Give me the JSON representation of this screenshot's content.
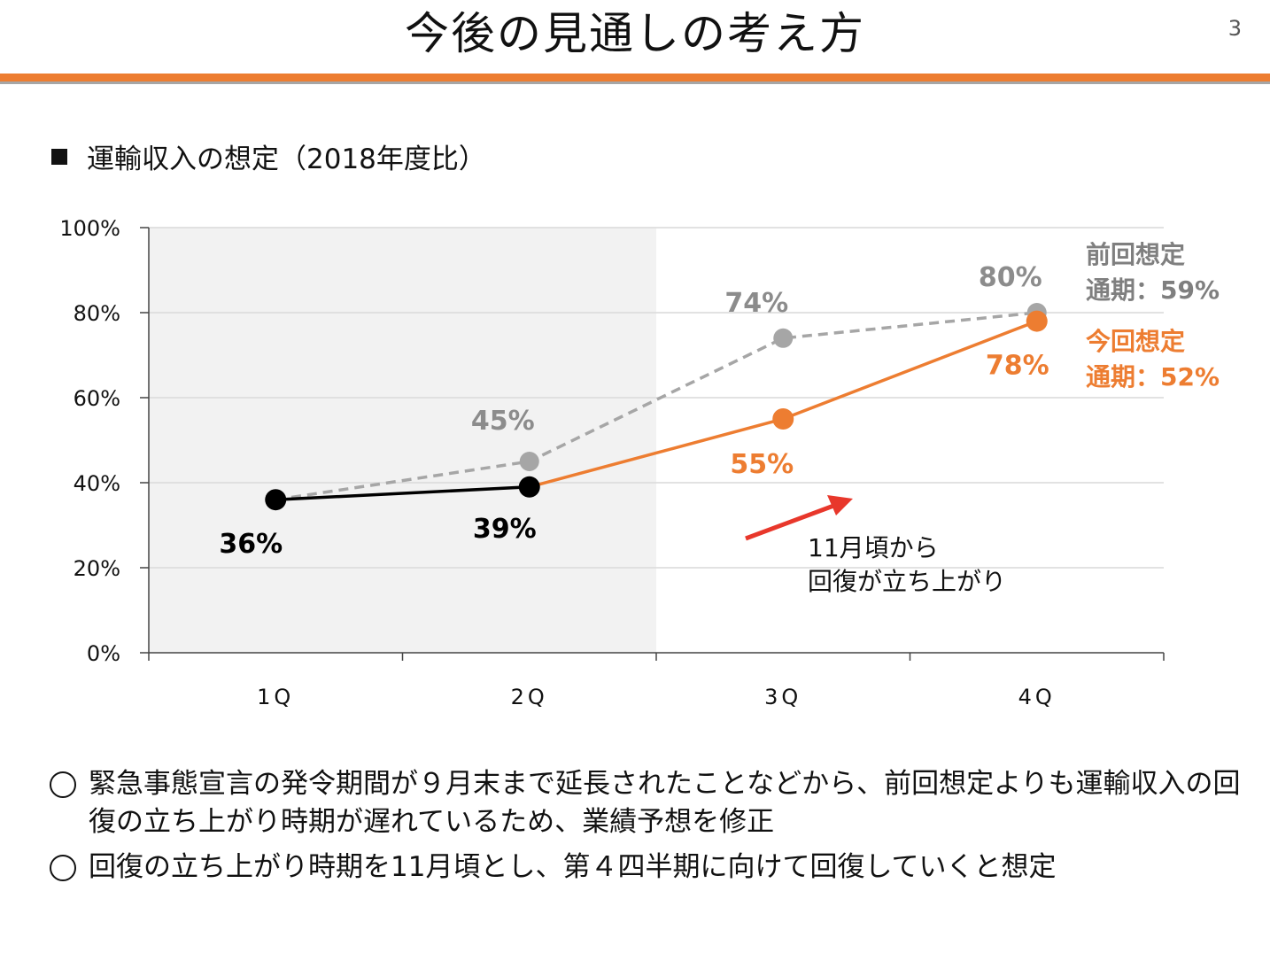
{
  "header": {
    "title": "今後の見通しの考え方",
    "page_number": "3"
  },
  "section": {
    "title": "運輸収入の想定（2018年度比）"
  },
  "chart_data": {
    "type": "line",
    "title": "運輸収入の想定（2018年度比）",
    "categories": [
      "1Q",
      "2Q",
      "3Q",
      "4Q"
    ],
    "ylim": [
      0,
      100
    ],
    "yticks": [
      "0%",
      "20%",
      "40%",
      "60%",
      "80%",
      "100%"
    ],
    "grid": true,
    "shaded_region": "1Q–2Q",
    "series": [
      {
        "name": "前回想定",
        "values": [
          36,
          45,
          74,
          80
        ],
        "labels": [
          "",
          "45%",
          "74%",
          "80%"
        ],
        "color": "#a6a6a6",
        "dash": true
      },
      {
        "name": "今回想定",
        "values": [
          36,
          39,
          55,
          78
        ],
        "labels": [
          "36%",
          "39%",
          "55%",
          "78%"
        ],
        "color": "#ed7d31",
        "actual_color": "#000000",
        "actual_through": "2Q"
      }
    ],
    "legend": [
      {
        "line1": "前回想定",
        "line2": "通期：59%",
        "color": "#7f7f7f"
      },
      {
        "line1": "今回想定",
        "line2": "通期：52%",
        "color": "#ed7d31"
      }
    ],
    "annotation": {
      "line1": "11月頃から",
      "line2": "回復が立ち上がり",
      "arrow_color": "#e8372b"
    }
  },
  "notes": [
    {
      "text": "緊急事態宣言の発令期間が９月末まで延長されたことなどから、前回想定よりも運輸収入の回復の立ち上がり時期が遅れているため、業績予想を修正"
    },
    {
      "text": "回復の立ち上がり時期を11月頃とし、第４四半期に向けて回復していくと想定"
    }
  ]
}
